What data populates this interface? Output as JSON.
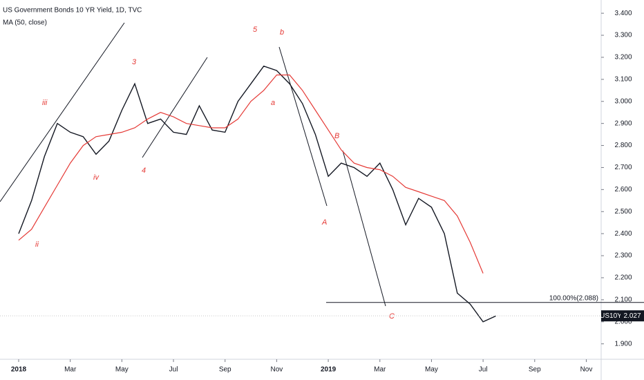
{
  "chart_data": {
    "type": "line",
    "title": "US Government Bonds 10 YR Yield, 1D, TVC",
    "subtitle": "MA (50, close)",
    "categories": [
      "2018",
      null,
      null,
      null,
      "Mar",
      null,
      null,
      null,
      "May",
      null,
      null,
      null,
      "Jul",
      null,
      null,
      null,
      "Sep",
      null,
      null,
      null,
      "Nov",
      null,
      null,
      null,
      "2019",
      null,
      null,
      null,
      "Mar",
      null,
      null,
      null,
      "May",
      null,
      null,
      null,
      "Jul",
      null,
      null,
      null,
      "Sep",
      null,
      null,
      null,
      "Nov"
    ],
    "series": [
      {
        "name": "US10Y",
        "color": "#131722",
        "values": [
          2.4,
          2.55,
          2.75,
          2.9,
          2.86,
          2.84,
          2.76,
          2.82,
          2.96,
          3.08,
          2.9,
          2.92,
          2.86,
          2.85,
          2.98,
          2.87,
          2.86,
          3.0,
          3.08,
          3.16,
          3.14,
          3.08,
          2.99,
          2.85,
          2.66,
          2.72,
          2.7,
          2.66,
          2.72,
          2.6,
          2.44,
          2.56,
          2.52,
          2.4,
          2.13,
          2.08,
          2.0,
          2.027,
          null,
          null,
          null,
          null,
          null,
          null,
          null
        ]
      },
      {
        "name": "MA (50, close)",
        "color": "#e53935",
        "values": [
          2.37,
          2.42,
          2.52,
          2.62,
          2.72,
          2.8,
          2.84,
          2.85,
          2.86,
          2.88,
          2.92,
          2.95,
          2.93,
          2.9,
          2.89,
          2.88,
          2.88,
          2.92,
          3.0,
          3.05,
          3.12,
          3.12,
          3.05,
          2.96,
          2.87,
          2.78,
          2.72,
          2.7,
          2.69,
          2.66,
          2.61,
          2.59,
          2.57,
          2.55,
          2.48,
          2.36,
          2.22,
          null,
          null,
          null,
          null,
          null,
          null,
          null,
          null
        ]
      }
    ],
    "ylim": [
      1.83,
      3.46
    ],
    "yticks": [
      {
        "value": 1.9,
        "label": "1.900"
      },
      {
        "value": 2.0,
        "label": "2.000"
      },
      {
        "value": 2.1,
        "label": "2.100"
      },
      {
        "value": 2.2,
        "label": "2.200"
      },
      {
        "value": 2.3,
        "label": "2.300"
      },
      {
        "value": 2.4,
        "label": "2.400"
      },
      {
        "value": 2.5,
        "label": "2.500"
      },
      {
        "value": 2.6,
        "label": "2.600"
      },
      {
        "value": 2.7,
        "label": "2.700"
      },
      {
        "value": 2.8,
        "label": "2.800"
      },
      {
        "value": 2.9,
        "label": "2.900"
      },
      {
        "value": 3.0,
        "label": "3.000"
      },
      {
        "value": 3.1,
        "label": "3.100"
      },
      {
        "value": 3.2,
        "label": "3.200"
      },
      {
        "value": 3.3,
        "label": "3.300"
      },
      {
        "value": 3.4,
        "label": "3.400"
      }
    ],
    "price_tag": {
      "symbol": "US10Y",
      "value": 2.027
    },
    "fib_level": {
      "label": "100.00%(2.088)",
      "value": 2.088
    },
    "annotations": [
      "5",
      "b",
      "3",
      "iii",
      "a",
      "B",
      "iv",
      "4",
      "ii",
      "A",
      "C"
    ]
  }
}
